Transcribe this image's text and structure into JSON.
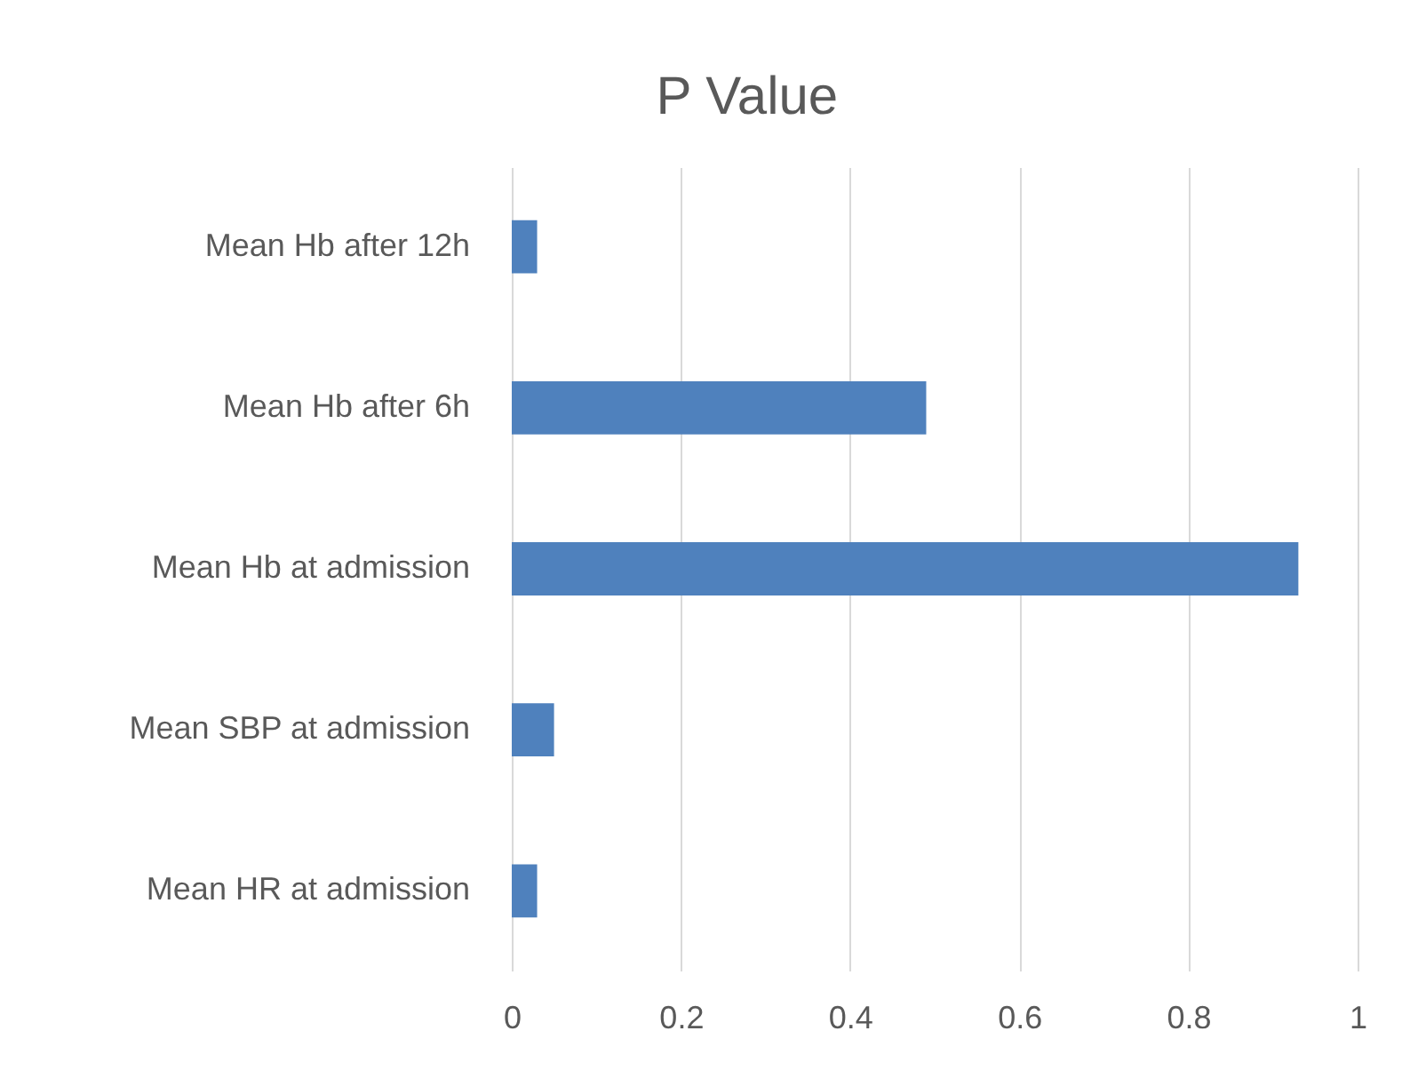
{
  "chart_data": {
    "type": "bar",
    "orientation": "horizontal",
    "title": "P Value",
    "categories": [
      "Mean Hb after 12h",
      "Mean Hb after 6h",
      "Mean Hb at admission",
      "Mean SBP at admission",
      "Mean HR at admission"
    ],
    "values": [
      0.03,
      0.49,
      0.93,
      0.05,
      0.03
    ],
    "color": "#4f81bd",
    "xlim": [
      0,
      1
    ],
    "xticks": [
      0,
      0.2,
      0.4,
      0.6,
      0.8,
      1
    ],
    "grid": "x"
  }
}
